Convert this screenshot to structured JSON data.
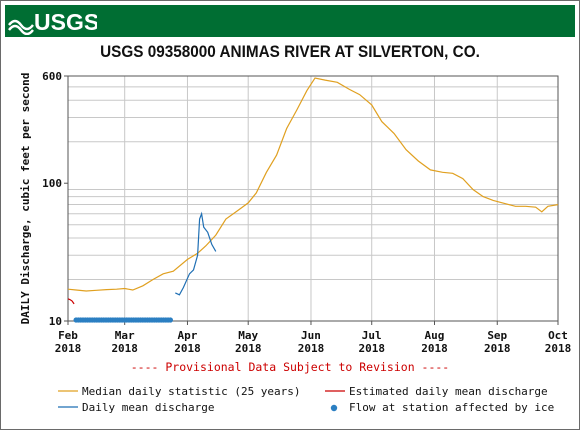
{
  "header": {
    "logo_text": "USGS"
  },
  "colors": {
    "banner": "#006e33",
    "median": "#e0a020",
    "daily": "#1f6fb4",
    "estimated": "#cc0000",
    "ice": "#2b7fc2",
    "provisional": "#cc0000"
  },
  "chart_data": {
    "type": "line",
    "title": "USGS 09358000 ANIMAS RIVER AT SILVERTON, CO.",
    "ylabel": "DAILY Discharge, cubic feet per second",
    "y_scale": "log",
    "ylim": [
      10,
      600
    ],
    "y_ticks": [
      10,
      100,
      600
    ],
    "y_tick_labels": [
      "10",
      "100",
      "600"
    ],
    "xlim": [
      "2018-02-01",
      "2018-10-01"
    ],
    "x_ticks": [
      {
        "date": "2018-02-01",
        "label": [
          "Feb",
          "2018"
        ]
      },
      {
        "date": "2018-03-01",
        "label": [
          "Mar",
          "2018"
        ]
      },
      {
        "date": "2018-04-01",
        "label": [
          "Apr",
          "2018"
        ]
      },
      {
        "date": "2018-05-01",
        "label": [
          "May",
          "2018"
        ]
      },
      {
        "date": "2018-06-01",
        "label": [
          "Jun",
          "2018"
        ]
      },
      {
        "date": "2018-07-01",
        "label": [
          "Jul",
          "2018"
        ]
      },
      {
        "date": "2018-08-01",
        "label": [
          "Aug",
          "2018"
        ]
      },
      {
        "date": "2018-09-01",
        "label": [
          "Sep",
          "2018"
        ]
      },
      {
        "date": "2018-10-01",
        "label": [
          "Oct",
          "2018"
        ]
      }
    ],
    "grid": true,
    "provisional_note": "---- Provisional Data Subject to Revision ----",
    "legend": [
      {
        "key": "median",
        "label": "Median daily statistic (25 years)"
      },
      {
        "key": "estimated",
        "label": "Estimated daily mean discharge"
      },
      {
        "key": "daily",
        "label": "Daily mean discharge"
      },
      {
        "key": "ice",
        "label": "Flow at station affected by ice"
      }
    ],
    "series": [
      {
        "key": "median",
        "name": "Median daily statistic (25 years)",
        "points": [
          [
            "2018-02-01",
            17
          ],
          [
            "2018-02-05",
            16.8
          ],
          [
            "2018-02-10",
            16.5
          ],
          [
            "2018-02-15",
            16.7
          ],
          [
            "2018-02-20",
            16.9
          ],
          [
            "2018-02-25",
            17.0
          ],
          [
            "2018-03-01",
            17.2
          ],
          [
            "2018-03-05",
            16.8
          ],
          [
            "2018-03-10",
            18
          ],
          [
            "2018-03-15",
            20
          ],
          [
            "2018-03-20",
            22
          ],
          [
            "2018-03-25",
            23
          ],
          [
            "2018-04-01",
            28
          ],
          [
            "2018-04-06",
            31
          ],
          [
            "2018-04-10",
            35
          ],
          [
            "2018-04-15",
            42
          ],
          [
            "2018-04-20",
            55
          ],
          [
            "2018-04-25",
            62
          ],
          [
            "2018-05-01",
            72
          ],
          [
            "2018-05-05",
            85
          ],
          [
            "2018-05-10",
            120
          ],
          [
            "2018-05-15",
            160
          ],
          [
            "2018-05-20",
            250
          ],
          [
            "2018-05-25",
            340
          ],
          [
            "2018-05-30",
            470
          ],
          [
            "2018-06-03",
            580
          ],
          [
            "2018-06-08",
            560
          ],
          [
            "2018-06-14",
            540
          ],
          [
            "2018-06-20",
            480
          ],
          [
            "2018-06-25",
            440
          ],
          [
            "2018-07-01",
            370
          ],
          [
            "2018-07-06",
            280
          ],
          [
            "2018-07-12",
            230
          ],
          [
            "2018-07-18",
            175
          ],
          [
            "2018-07-24",
            145
          ],
          [
            "2018-07-30",
            125
          ],
          [
            "2018-08-05",
            120
          ],
          [
            "2018-08-10",
            118
          ],
          [
            "2018-08-15",
            108
          ],
          [
            "2018-08-20",
            90
          ],
          [
            "2018-08-25",
            80
          ],
          [
            "2018-08-30",
            75
          ],
          [
            "2018-09-05",
            71
          ],
          [
            "2018-09-10",
            68
          ],
          [
            "2018-09-15",
            68
          ],
          [
            "2018-09-20",
            67
          ],
          [
            "2018-09-23",
            62
          ],
          [
            "2018-09-26",
            68
          ],
          [
            "2018-10-01",
            70
          ]
        ]
      },
      {
        "key": "daily",
        "name": "Daily mean discharge",
        "points": [
          [
            "2018-03-26",
            16
          ],
          [
            "2018-03-28",
            15.5
          ],
          [
            "2018-03-30",
            17.5
          ],
          [
            "2018-04-02",
            22
          ],
          [
            "2018-04-04",
            23.5
          ],
          [
            "2018-04-06",
            30
          ],
          [
            "2018-04-07",
            55
          ],
          [
            "2018-04-08",
            60
          ],
          [
            "2018-04-09",
            48
          ],
          [
            "2018-04-11",
            44
          ],
          [
            "2018-04-13",
            36
          ],
          [
            "2018-04-15",
            32
          ]
        ]
      },
      {
        "key": "estimated",
        "name": "Estimated daily mean discharge",
        "points": [
          [
            "2018-02-01",
            14.5
          ],
          [
            "2018-02-02",
            14.3
          ],
          [
            "2018-02-03",
            14.0
          ],
          [
            "2018-02-04",
            13.3
          ]
        ]
      },
      {
        "key": "ice",
        "name": "Flow at station affected by ice",
        "date_range": [
          "2018-02-05",
          "2018-03-24"
        ],
        "value": 10
      }
    ]
  }
}
